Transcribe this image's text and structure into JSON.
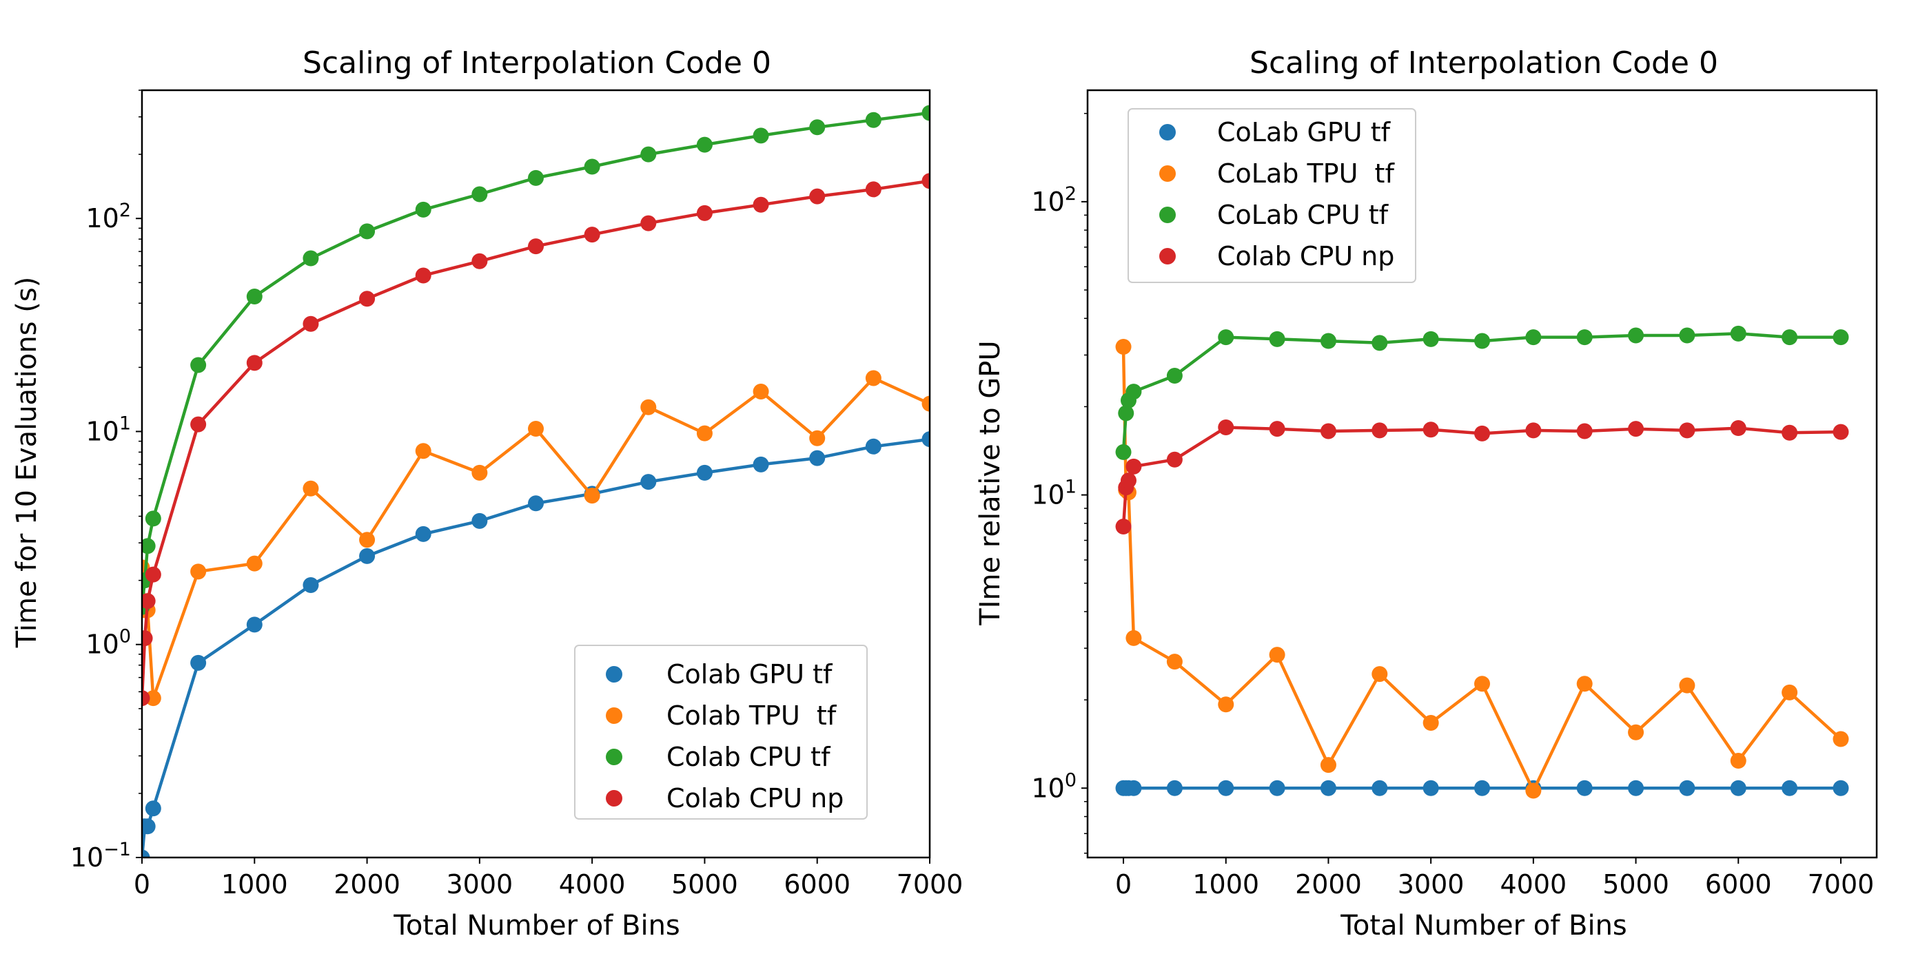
{
  "colors": {
    "gpu": "#1f77b4",
    "tpu": "#ff7f0e",
    "cpu_tf": "#2ca02c",
    "cpu_np": "#d62728"
  },
  "chart_data": [
    {
      "type": "line",
      "title": "Scaling of Interpolation Code 0",
      "xlabel": "Total Number of Bins",
      "ylabel": "Time for 10 Evaluations (s)",
      "xlim": [
        0,
        7000
      ],
      "ylim": [
        0.1,
        400
      ],
      "yscale": "log",
      "grid": false,
      "legend_position": "lower right",
      "xticks": [
        "0",
        "1000",
        "2000",
        "3000",
        "4000",
        "5000",
        "6000",
        "7000"
      ],
      "yticks": [
        {
          "base": "10",
          "exp": "−1"
        },
        {
          "base": "10",
          "exp": "0"
        },
        {
          "base": "10",
          "exp": "1"
        },
        {
          "base": "10",
          "exp": "2"
        }
      ],
      "x": [
        0,
        25,
        50,
        100,
        500,
        1000,
        1500,
        2000,
        2500,
        3000,
        3500,
        4000,
        4500,
        5000,
        5500,
        6000,
        6500,
        7000
      ],
      "series": [
        {
          "name": "Colab GPU tf",
          "color_key": "gpu",
          "values": [
            0.1,
            0.14,
            0.14,
            0.17,
            0.82,
            1.24,
            1.9,
            2.6,
            3.3,
            3.8,
            4.6,
            5.1,
            5.8,
            6.4,
            7.0,
            7.5,
            8.5,
            9.2
          ]
        },
        {
          "name": "Colab TPU  tf",
          "color_key": "tpu",
          "values": [
            2.3,
            1.45,
            1.45,
            0.56,
            2.2,
            2.4,
            5.4,
            3.1,
            8.1,
            6.4,
            10.3,
            5.0,
            13.0,
            9.8,
            15.4,
            9.3,
            17.8,
            13.5
          ]
        },
        {
          "name": "Colab CPU tf",
          "color_key": "cpu_tf",
          "values": [
            1.5,
            2.0,
            2.9,
            3.9,
            20.5,
            43,
            65,
            87,
            110,
            130,
            155,
            175,
            200,
            222,
            245,
            268,
            290,
            313
          ]
        },
        {
          "name": "Colab CPU np",
          "color_key": "cpu_np",
          "values": [
            0.56,
            1.07,
            1.6,
            2.13,
            10.8,
            21,
            32,
            42,
            54,
            63,
            74,
            84,
            95,
            106,
            116,
            127,
            137,
            150
          ]
        }
      ]
    },
    {
      "type": "line",
      "title": "Scaling of Interpolation Code 0",
      "xlabel": "Total Number of Bins",
      "ylabel": "TIme relative to GPU",
      "xlim": [
        -350,
        7350
      ],
      "ylim": [
        0.58,
        240
      ],
      "yscale": "log",
      "grid": false,
      "legend_position": "upper left",
      "xticks": [
        "0",
        "1000",
        "2000",
        "3000",
        "4000",
        "5000",
        "6000",
        "7000"
      ],
      "yticks": [
        {
          "base": "10",
          "exp": "0"
        },
        {
          "base": "10",
          "exp": "1"
        },
        {
          "base": "10",
          "exp": "2"
        }
      ],
      "x": [
        0,
        25,
        50,
        100,
        500,
        1000,
        1500,
        2000,
        2500,
        3000,
        3500,
        4000,
        4500,
        5000,
        5500,
        6000,
        6500,
        7000
      ],
      "series": [
        {
          "name": "CoLab GPU tf",
          "color_key": "gpu",
          "values": [
            1,
            1,
            1,
            1,
            1,
            1,
            1,
            1,
            1,
            1,
            1,
            1,
            1,
            1,
            1,
            1,
            1,
            1
          ]
        },
        {
          "name": "CoLab TPU  tf",
          "color_key": "tpu",
          "values": [
            32,
            10.4,
            10.2,
            3.25,
            2.7,
            1.93,
            2.85,
            1.2,
            2.45,
            1.67,
            2.27,
            0.98,
            2.27,
            1.55,
            2.24,
            1.24,
            2.12,
            1.47
          ]
        },
        {
          "name": "CoLab CPU tf",
          "color_key": "cpu_tf",
          "values": [
            14,
            19,
            21,
            22.5,
            25.5,
            34.5,
            34,
            33.5,
            33,
            34,
            33.5,
            34.5,
            34.5,
            35,
            35,
            35.5,
            34.5,
            34.5
          ]
        },
        {
          "name": "Colab CPU np",
          "color_key": "cpu_np",
          "values": [
            7.8,
            10.6,
            11.2,
            12.5,
            13.2,
            17,
            16.8,
            16.5,
            16.6,
            16.7,
            16.2,
            16.6,
            16.5,
            16.8,
            16.6,
            16.9,
            16.3,
            16.4
          ]
        }
      ]
    }
  ]
}
